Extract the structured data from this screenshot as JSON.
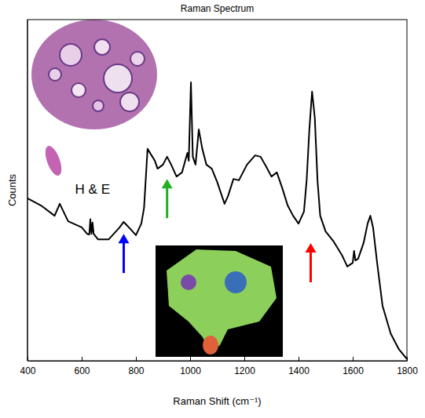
{
  "chart_data": {
    "type": "line",
    "title": "Raman Spectrum",
    "x_label": "Raman Shift (cm⁻¹)",
    "y_label": "Counts",
    "color": "#000000",
    "x": [
      400,
      450,
      500,
      519,
      550,
      600,
      620,
      628,
      632,
      636,
      640,
      644,
      660,
      700,
      740,
      755,
      780,
      800,
      820,
      830,
      843,
      870,
      880,
      900,
      915,
      930,
      950,
      970,
      990,
      995,
      1003,
      1010,
      1020,
      1032,
      1045,
      1060,
      1080,
      1100,
      1127,
      1140,
      1160,
      1180,
      1210,
      1240,
      1260,
      1280,
      1300,
      1320,
      1340,
      1360,
      1380,
      1400,
      1420,
      1430,
      1440,
      1450,
      1460,
      1470,
      1480,
      1500,
      1530,
      1560,
      1580,
      1600,
      1605,
      1610,
      1620,
      1640,
      1655,
      1665,
      1675,
      1690,
      1710,
      1740,
      1770,
      1800
    ],
    "values": [
      47.6,
      45.5,
      42.5,
      46.0,
      40.9,
      39.1,
      37.2,
      37.0,
      41.5,
      37.2,
      40.5,
      37.2,
      35.6,
      35.6,
      39.1,
      40.7,
      38.6,
      36.8,
      40.2,
      44.8,
      62.1,
      58.6,
      56.3,
      57.5,
      59.8,
      57.5,
      54.0,
      55.2,
      60.9,
      58.6,
      81.6,
      59.8,
      57.5,
      67.8,
      62.1,
      57.5,
      56.3,
      52.4,
      46.0,
      48.3,
      53.3,
      52.9,
      57.5,
      60.2,
      59.8,
      57.0,
      54.0,
      55.2,
      50.6,
      45.5,
      42.5,
      40.2,
      43.7,
      52.9,
      67.8,
      78.9,
      71.3,
      52.9,
      42.5,
      37.9,
      34.9,
      31.0,
      27.6,
      28.7,
      32.2,
      29.4,
      29.9,
      34.5,
      40.2,
      42.5,
      39.1,
      28.7,
      16.1,
      8.0,
      3.4,
      0.5
    ],
    "xlim": [
      400,
      1800
    ],
    "xticks": [
      400,
      600,
      800,
      1000,
      1200,
      1400,
      1600,
      1800
    ],
    "ylim": [
      0,
      100
    ],
    "tick_labels": "x",
    "annotations": [
      {
        "text": "H & E",
        "x": 640,
        "y": 50
      }
    ],
    "arrows": [
      {
        "x": 755,
        "y": 37.2,
        "color": "#0000ff"
      },
      {
        "x": 915,
        "y": 53.3,
        "color": "#22b022"
      },
      {
        "x": 1445,
        "y": 34.5,
        "color": "#ff0000"
      }
    ]
  }
}
